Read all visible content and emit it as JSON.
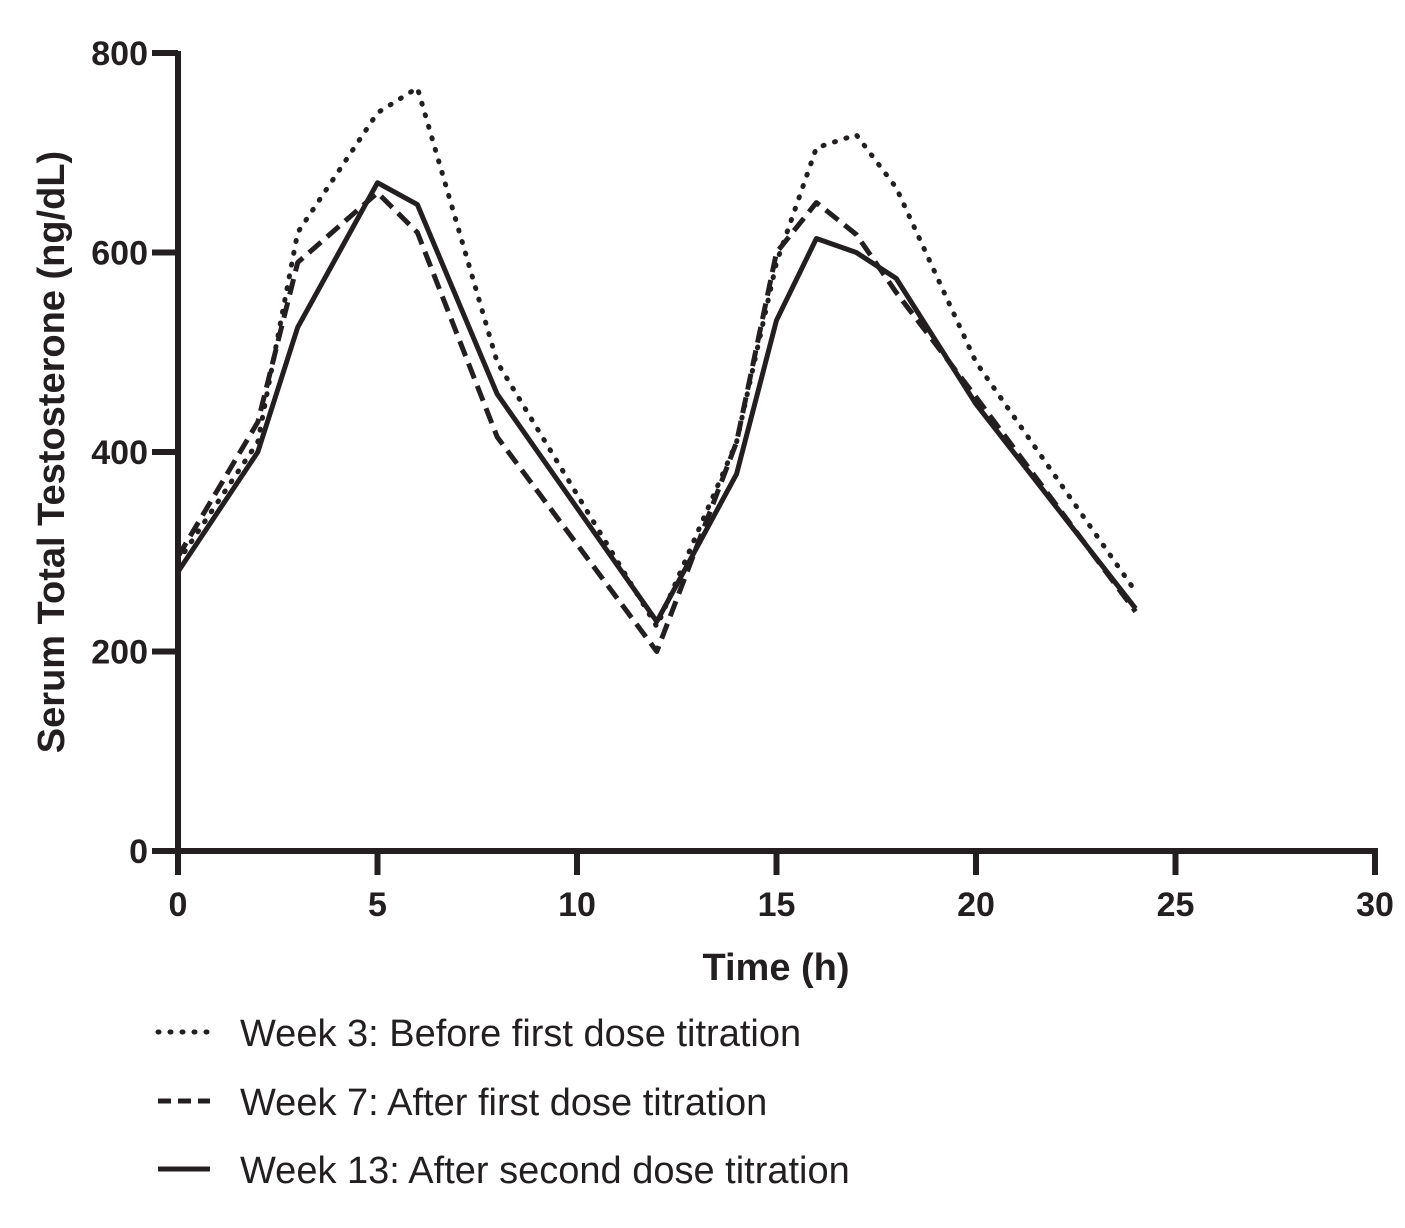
{
  "chart_data": {
    "type": "line",
    "xlabel": "Time (h)",
    "ylabel": "Serum Total Testosterone (ng/dL)",
    "xlim": [
      0,
      30
    ],
    "ylim": [
      0,
      800
    ],
    "xticks": [
      0,
      5,
      10,
      15,
      20,
      25,
      30
    ],
    "yticks": [
      0,
      200,
      400,
      600,
      800
    ],
    "grid": false,
    "legend_position": "bottom",
    "series": [
      {
        "name": "Week 3: Before first dose titration",
        "line_style": "dotted",
        "color": "#231f20",
        "x": [
          0,
          2,
          3,
          5,
          6,
          8,
          12,
          14,
          15,
          16,
          17,
          18,
          20,
          24
        ],
        "y": [
          290,
          410,
          620,
          740,
          765,
          490,
          225,
          410,
          590,
          705,
          718,
          665,
          490,
          260
        ]
      },
      {
        "name": "Week 7: After first dose titration",
        "line_style": "dashed",
        "color": "#231f20",
        "x": [
          0,
          2,
          3,
          5,
          6,
          8,
          12,
          14,
          15,
          16,
          17,
          18,
          20,
          24
        ],
        "y": [
          295,
          430,
          590,
          660,
          620,
          415,
          200,
          410,
          600,
          650,
          618,
          560,
          455,
          240
        ]
      },
      {
        "name": "Week 13: After second dose titration",
        "line_style": "solid",
        "color": "#231f20",
        "x": [
          0,
          2,
          3,
          5,
          6,
          8,
          12,
          14,
          15,
          16,
          17,
          18,
          20,
          24
        ],
        "y": [
          280,
          400,
          525,
          670,
          648,
          458,
          230,
          378,
          532,
          614,
          600,
          574,
          448,
          243
        ]
      }
    ]
  }
}
